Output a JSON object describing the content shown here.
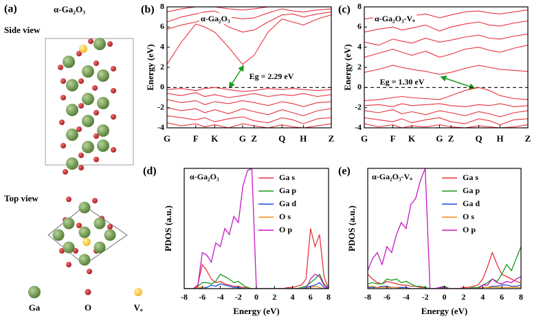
{
  "structure": {
    "panel_label": "(a)",
    "title": "α-Ga₂O₃",
    "side_view": "Side view",
    "top_view": "Top view",
    "legend": [
      "Ga",
      "O",
      "Vₒ"
    ]
  },
  "chart_data": [
    {
      "type": "line",
      "panel_label": "(b)",
      "inset_title": "α-Ga₂O₃",
      "annotation": "Eg = 2.29 eV",
      "ylabel": "Energy (eV)",
      "fermi_level": 0,
      "x": [
        0,
        0.0875,
        0.175,
        0.23,
        0.29,
        0.375,
        0.46,
        0.53,
        0.615,
        0.7,
        0.765,
        0.83,
        0.915,
        1.0
      ],
      "xlim": [
        0,
        1.0
      ],
      "xticks": [
        {
          "value": 0,
          "label": "G"
        },
        {
          "value": 0.175,
          "label": "F"
        },
        {
          "value": 0.29,
          "label": "K"
        },
        {
          "value": 0.46,
          "label": "G"
        },
        {
          "value": 0.53,
          "label": "Z"
        },
        {
          "value": 0.7,
          "label": "Q"
        },
        {
          "value": 0.83,
          "label": "H"
        },
        {
          "value": 1.0,
          "label": "Z"
        }
      ],
      "ylim": [
        -4,
        8
      ],
      "yticks": [
        -4,
        -2,
        0,
        2,
        4,
        6,
        8
      ],
      "series": [
        {
          "color": "#e8323c",
          "values": [
            2.3,
            4.5,
            6.3,
            6.0,
            5.5,
            4.0,
            2.29,
            3.2,
            5.5,
            6.8,
            6.5,
            6.2,
            6.8,
            7.2
          ]
        },
        {
          "color": "#e8323c",
          "values": [
            5.8,
            6.2,
            6.5,
            6.8,
            6.9,
            6.0,
            5.5,
            5.7,
            6.5,
            7.2,
            7.3,
            7.0,
            7.3,
            7.5
          ]
        },
        {
          "color": "#e8323c",
          "values": [
            6.5,
            7.0,
            7.3,
            7.5,
            7.6,
            7.0,
            6.8,
            6.9,
            7.4,
            7.8,
            7.6,
            7.5,
            7.7,
            7.8
          ]
        },
        {
          "color": "#e8323c",
          "values": [
            7.5,
            7.8,
            8.0,
            8.0,
            8.0,
            7.8,
            7.7,
            7.8,
            8.0,
            8.0,
            8.0,
            8.0,
            8.0,
            8.0
          ]
        },
        {
          "color": "#e8323c",
          "values": [
            -0.2,
            -0.1,
            -0.3,
            -0.1,
            0,
            -0.2,
            -0.4,
            -0.3,
            -0.1,
            -0.2,
            -0.1,
            -0.2,
            -0.3,
            -0.2
          ]
        },
        {
          "color": "#e8323c",
          "values": [
            -0.6,
            -0.8,
            -0.5,
            -0.9,
            -0.7,
            -1.0,
            -0.8,
            -0.6,
            -0.9,
            -0.7,
            -0.8,
            -0.6,
            -0.9,
            -0.7
          ]
        },
        {
          "color": "#e8323c",
          "values": [
            -1.2,
            -1.5,
            -1.3,
            -1.7,
            -1.4,
            -1.6,
            -1.3,
            -1.5,
            -1.8,
            -1.4,
            -1.6,
            -1.9,
            -1.5,
            -1.4
          ]
        },
        {
          "color": "#e8323c",
          "values": [
            -2.0,
            -2.3,
            -2.1,
            -2.5,
            -2.2,
            -2.6,
            -2.1,
            -2.4,
            -2.7,
            -2.2,
            -2.5,
            -2.8,
            -2.3,
            -2.1
          ]
        },
        {
          "color": "#e8323c",
          "values": [
            -2.8,
            -3.0,
            -3.2,
            -3.0,
            -3.4,
            -3.1,
            -2.9,
            -3.3,
            -3.5,
            -3.0,
            -3.2,
            -3.6,
            -3.1,
            -3.0
          ]
        },
        {
          "color": "#e8323c",
          "values": [
            -3.5,
            -3.8,
            -3.6,
            -3.9,
            -3.7,
            -4.0,
            -3.6,
            -3.8,
            -4.0,
            -3.7,
            -3.9,
            -4.0,
            -3.8,
            -3.6
          ]
        }
      ]
    },
    {
      "type": "line",
      "panel_label": "(c)",
      "inset_title": "α-Ga₂O₃-Vₒ",
      "annotation": "Eg = 1.30 eV",
      "ylabel": "Energy (eV)",
      "fermi_level": 0,
      "x": [
        0,
        0.0875,
        0.175,
        0.23,
        0.29,
        0.375,
        0.46,
        0.53,
        0.615,
        0.7,
        0.765,
        0.83,
        0.915,
        1.0
      ],
      "xlim": [
        0,
        1.0
      ],
      "xticks": [
        {
          "value": 0,
          "label": "G"
        },
        {
          "value": 0.175,
          "label": "F"
        },
        {
          "value": 0.29,
          "label": "K"
        },
        {
          "value": 0.46,
          "label": "G"
        },
        {
          "value": 0.53,
          "label": "Z"
        },
        {
          "value": 0.7,
          "label": "Q"
        },
        {
          "value": 0.83,
          "label": "H"
        },
        {
          "value": 1.0,
          "label": "Z"
        }
      ],
      "ylim": [
        -4,
        8
      ],
      "yticks": [
        -4,
        -2,
        0,
        2,
        4,
        6,
        8
      ],
      "series": [
        {
          "color": "#e8323c",
          "values": [
            1.5,
            1.8,
            2.2,
            2.0,
            1.8,
            1.6,
            1.3,
            1.5,
            1.9,
            2.2,
            2.0,
            1.8,
            1.7,
            1.6
          ]
        },
        {
          "color": "#e8323c",
          "values": [
            3.0,
            3.4,
            3.8,
            3.5,
            3.2,
            3.6,
            3.0,
            3.3,
            3.8,
            4.0,
            3.7,
            3.5,
            3.9,
            4.2
          ]
        },
        {
          "color": "#e8323c",
          "values": [
            4.5,
            4.2,
            4.8,
            4.6,
            4.4,
            4.9,
            4.5,
            4.7,
            5.0,
            5.2,
            4.9,
            4.8,
            5.1,
            5.3
          ]
        },
        {
          "color": "#e8323c",
          "values": [
            5.5,
            5.8,
            6.0,
            5.7,
            5.9,
            6.2,
            5.6,
            6.0,
            6.3,
            6.5,
            6.2,
            6.1,
            6.4,
            6.6
          ]
        },
        {
          "color": "#e8323c",
          "values": [
            6.8,
            7.0,
            7.2,
            7.0,
            7.1,
            7.3,
            6.9,
            7.2,
            7.5,
            7.6,
            7.4,
            7.3,
            7.5,
            7.7
          ]
        },
        {
          "color": "#e8323c",
          "values": [
            -1.3,
            -1.2,
            -1.0,
            -0.9,
            -1.0,
            -1.1,
            -1.2,
            -0.8,
            -0.3,
            0,
            -0.3,
            -0.8,
            -1.1,
            -1.2
          ]
        },
        {
          "color": "#e8323c",
          "values": [
            -1.8,
            -1.7,
            -1.9,
            -1.6,
            -1.8,
            -1.7,
            -1.6,
            -1.8,
            -1.9,
            -1.7,
            -1.8,
            -1.6,
            -1.9,
            -1.8
          ]
        },
        {
          "color": "#e8323c",
          "values": [
            -2.3,
            -2.5,
            -2.2,
            -2.6,
            -2.4,
            -2.7,
            -2.3,
            -2.5,
            -2.8,
            -2.4,
            -2.6,
            -2.9,
            -2.5,
            -2.3
          ]
        },
        {
          "color": "#e8323c",
          "values": [
            -3.0,
            -3.2,
            -3.4,
            -3.1,
            -3.5,
            -3.2,
            -3.0,
            -3.4,
            -3.6,
            -3.1,
            -3.3,
            -3.7,
            -3.2,
            -3.1
          ]
        },
        {
          "color": "#e8323c",
          "values": [
            -3.6,
            -3.9,
            -3.7,
            -4.0,
            -3.8,
            -3.9,
            -3.7,
            -3.9,
            -4.0,
            -3.8,
            -3.9,
            -4.0,
            -3.9,
            -3.7
          ]
        }
      ]
    },
    {
      "type": "line",
      "panel_label": "(d)",
      "inset_title": "α-Ga₂O₃",
      "xlabel": "Energy (eV)",
      "ylabel": "PDOS (a.u.)",
      "x": [
        -8,
        -7.5,
        -7,
        -6.5,
        -6,
        -5.5,
        -5,
        -4.5,
        -4,
        -3.5,
        -3,
        -2.5,
        -2,
        -1.5,
        -1,
        -0.5,
        0,
        0.5,
        1,
        1.5,
        2,
        2.5,
        3,
        3.5,
        4,
        4.5,
        5,
        5.5,
        6,
        6.5,
        7,
        7.5,
        8
      ],
      "xlim": [
        -8,
        8
      ],
      "xticks": [
        -8,
        -6,
        -4,
        -2,
        0,
        2,
        4,
        6,
        8
      ],
      "ylim": [
        0,
        100
      ],
      "series": [
        {
          "name": "Ga s",
          "color": "#e8323c",
          "values": [
            0,
            0,
            0,
            3,
            20,
            15,
            8,
            5,
            6,
            4,
            3,
            2,
            2,
            1,
            1,
            0,
            0,
            0,
            0,
            0,
            0,
            0,
            0,
            1,
            1,
            2,
            3,
            8,
            50,
            35,
            45,
            10,
            0
          ]
        },
        {
          "name": "Ga p",
          "color": "#1a9a1a",
          "values": [
            0,
            0,
            0,
            2,
            5,
            5,
            4,
            6,
            12,
            10,
            8,
            5,
            6,
            3,
            1,
            0,
            0,
            0,
            0,
            0,
            0,
            0,
            0,
            0,
            0,
            0,
            1,
            2,
            5,
            8,
            12,
            4,
            0
          ]
        },
        {
          "name": "Ga d",
          "color": "#1f4fd6",
          "values": [
            0,
            0,
            0,
            0,
            1,
            1,
            3,
            2,
            4,
            3,
            2,
            1,
            1,
            0,
            0,
            0,
            0,
            0,
            0,
            0,
            0,
            0,
            0,
            0,
            0,
            0,
            0,
            1,
            2,
            3,
            5,
            1,
            0
          ]
        },
        {
          "name": "O s",
          "color": "#f08a1c",
          "values": [
            0,
            0,
            0,
            1,
            1,
            0,
            0,
            0,
            0,
            0,
            0,
            0,
            0,
            0,
            0,
            0,
            0,
            0,
            0,
            0,
            0,
            0,
            0,
            0,
            0,
            0,
            0,
            0,
            1,
            2,
            1,
            0,
            0
          ]
        },
        {
          "name": "O p",
          "color": "#c219c2",
          "values": [
            0,
            0,
            0,
            2,
            30,
            28,
            22,
            38,
            35,
            50,
            45,
            60,
            55,
            85,
            98,
            100,
            0,
            0,
            0,
            0,
            0,
            0,
            0,
            0,
            0,
            0,
            0,
            0,
            8,
            12,
            10,
            3,
            0
          ]
        }
      ]
    },
    {
      "type": "line",
      "panel_label": "(e)",
      "inset_title": "α-Ga₂O₃-Vₒ",
      "xlabel": "Energy (eV)",
      "ylabel": "PDOS (a.u.)",
      "x": [
        -8,
        -7.5,
        -7,
        -6.5,
        -6,
        -5.5,
        -5,
        -4.5,
        -4,
        -3.5,
        -3,
        -2.5,
        -2,
        -1.5,
        -1,
        -0.5,
        0,
        0.5,
        1,
        1.5,
        2,
        2.5,
        3,
        3.5,
        4,
        4.5,
        5,
        5.5,
        6,
        6.5,
        7,
        7.5,
        8
      ],
      "xlim": [
        -8,
        8
      ],
      "xticks": [
        -8,
        -6,
        -4,
        -2,
        0,
        2,
        4,
        6,
        8
      ],
      "ylim": [
        0,
        100
      ],
      "series": [
        {
          "name": "Ga s",
          "color": "#e8323c",
          "values": [
            12,
            8,
            5,
            4,
            6,
            5,
            4,
            3,
            3,
            2,
            2,
            1,
            1,
            0,
            0,
            1,
            2,
            0,
            0,
            0,
            1,
            1,
            2,
            3,
            8,
            18,
            30,
            20,
            12,
            10,
            8,
            6,
            5
          ]
        },
        {
          "name": "Ga p",
          "color": "#1a9a1a",
          "values": [
            4,
            5,
            4,
            4,
            8,
            7,
            8,
            5,
            6,
            4,
            2,
            2,
            1,
            0,
            0,
            1,
            2,
            0,
            0,
            0,
            0,
            0,
            1,
            1,
            3,
            5,
            8,
            6,
            12,
            20,
            15,
            25,
            35
          ]
        },
        {
          "name": "Ga d",
          "color": "#1f4fd6",
          "values": [
            1,
            1,
            1,
            2,
            2,
            1,
            1,
            1,
            1,
            0,
            0,
            0,
            0,
            0,
            0,
            0,
            1,
            0,
            0,
            0,
            0,
            0,
            0,
            0,
            1,
            1,
            2,
            2,
            3,
            3,
            2,
            2,
            3
          ]
        },
        {
          "name": "O s",
          "color": "#f08a1c",
          "values": [
            2,
            2,
            1,
            1,
            1,
            1,
            1,
            0,
            0,
            0,
            0,
            0,
            0,
            0,
            0,
            0,
            0,
            0,
            0,
            0,
            0,
            0,
            0,
            0,
            1,
            1,
            1,
            1,
            1,
            1,
            1,
            1,
            1
          ]
        },
        {
          "name": "O p",
          "color": "#c219c2",
          "values": [
            15,
            25,
            30,
            20,
            35,
            30,
            45,
            55,
            50,
            70,
            75,
            90,
            100,
            0,
            0,
            1,
            1,
            0,
            0,
            0,
            0,
            0,
            0,
            0,
            3,
            3,
            8,
            5,
            4,
            6,
            5,
            8,
            10
          ]
        }
      ]
    }
  ]
}
